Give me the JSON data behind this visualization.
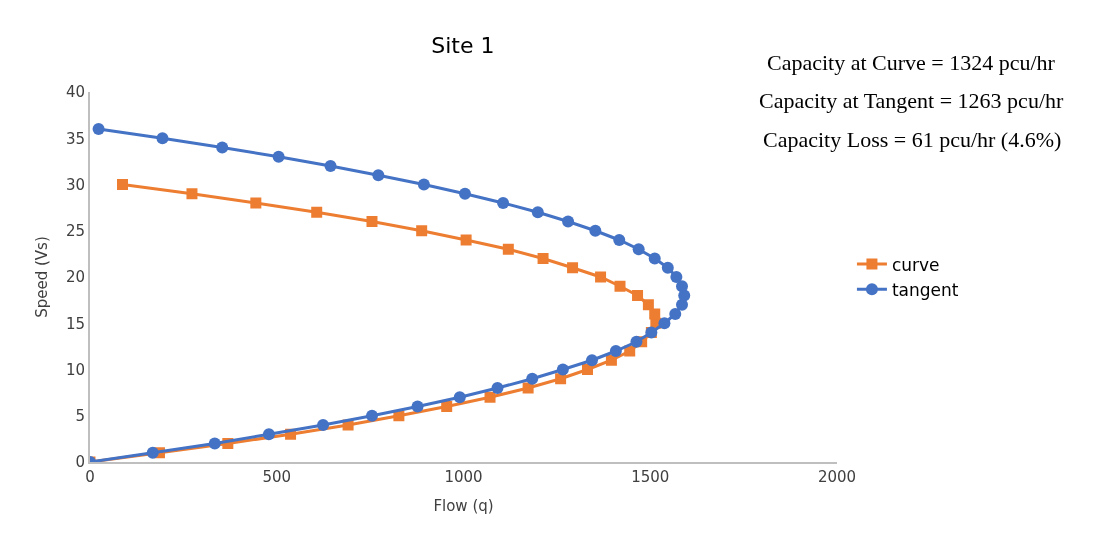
{
  "chart_data": {
    "type": "line",
    "title": "Site 1",
    "xlabel": "Flow (q)",
    "ylabel": "Speed (Vs)",
    "annotations": [
      "Capacity at Curve = 1324 pcu/hr",
      "Capacity at Tangent = 1263 pcu/hr",
      "Capacity Loss = 61 pcu/hr (4.6%)"
    ],
    "xlim": [
      0,
      2000
    ],
    "xticks": [
      0,
      500,
      1000,
      1500,
      2000
    ],
    "ylim": [
      0,
      40
    ],
    "yticks": [
      0,
      5,
      10,
      15,
      20,
      25,
      30,
      35,
      40
    ],
    "legend": "right",
    "line_style": "solid",
    "series": [
      {
        "name": "curve",
        "color": "#ed7d31",
        "marker": "square",
        "x": [
          0,
          186,
          369,
          537,
          691,
          827,
          955,
          1071,
          1173,
          1260,
          1332,
          1396,
          1445,
          1477,
          1503,
          1515,
          1512,
          1495,
          1466,
          1419,
          1367,
          1292,
          1213,
          1120,
          1007,
          888,
          755,
          607,
          444,
          273,
          87
        ],
        "values": [
          0,
          1,
          2,
          3,
          4,
          5,
          6,
          7,
          8,
          9,
          10,
          11,
          12,
          13,
          14,
          15,
          16,
          17,
          18,
          19,
          20,
          21,
          22,
          23,
          24,
          25,
          26,
          27,
          28,
          29,
          30
        ]
      },
      {
        "name": "tangent",
        "color": "#4472c4",
        "marker": "circle",
        "x": [
          0,
          168,
          334,
          479,
          624,
          755,
          877,
          990,
          1091,
          1184,
          1266,
          1344,
          1408,
          1463,
          1503,
          1538,
          1567,
          1585,
          1591,
          1585,
          1570,
          1547,
          1512,
          1469,
          1417,
          1353,
          1280,
          1199,
          1106,
          1004,
          894,
          772,
          644,
          505,
          354,
          194,
          23
        ],
        "values": [
          0,
          1,
          2,
          3,
          4,
          5,
          6,
          7,
          8,
          9,
          10,
          11,
          12,
          13,
          14,
          15,
          16,
          17,
          18,
          19,
          20,
          21,
          22,
          23,
          24,
          25,
          26,
          27,
          28,
          29,
          30,
          31,
          32,
          33,
          34,
          35,
          36
        ]
      }
    ]
  }
}
